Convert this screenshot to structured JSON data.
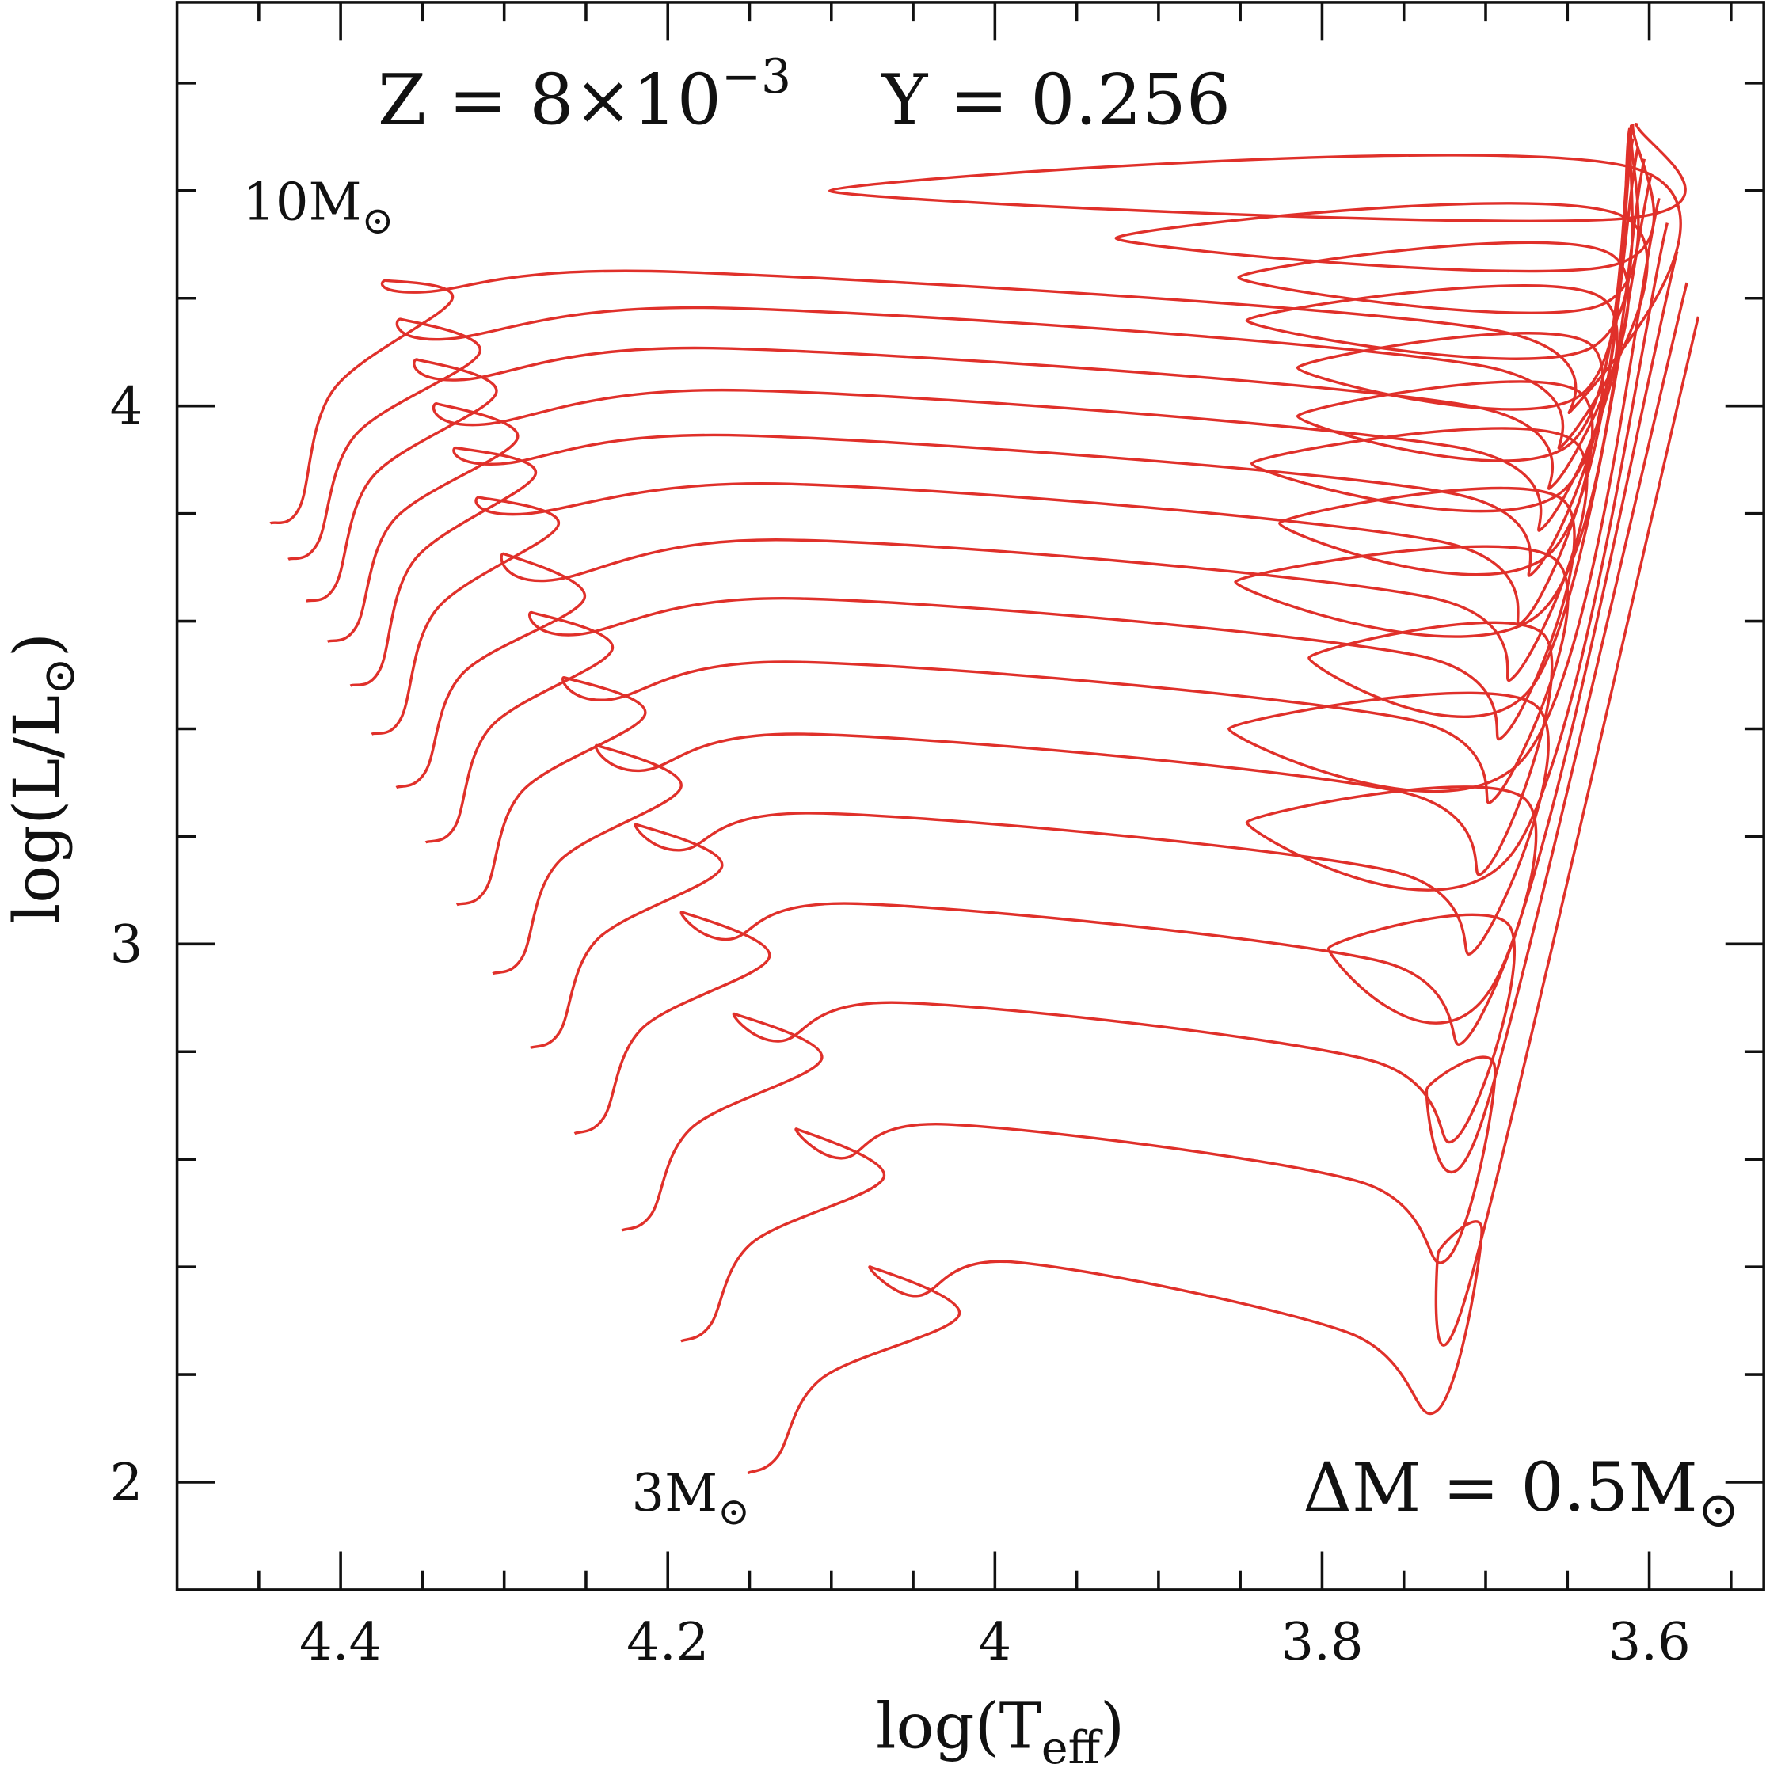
{
  "chart_data": {
    "type": "line",
    "title_parts": {
      "z_label": "Z = 8×10",
      "z_exp": "−3",
      "y_label": "Y = 0.256"
    },
    "xlabel": {
      "main": "log(T",
      "sub": "eff",
      "close": ")"
    },
    "ylabel": {
      "main": "log(L/L",
      "sub": "⊙",
      "close": ")"
    },
    "xlim": [
      4.5,
      3.53
    ],
    "ylim": [
      1.8,
      4.75
    ],
    "x_reversed": true,
    "x_ticks": [
      4.4,
      4.2,
      4.0,
      3.8,
      3.6
    ],
    "x_tick_labels": [
      "4.4",
      "4.2",
      "4",
      "3.8",
      "3.6"
    ],
    "x_minor_step": 0.05,
    "y_ticks": [
      2,
      3,
      4
    ],
    "y_tick_labels": [
      "2",
      "3",
      "4"
    ],
    "y_minor_step": 0.2,
    "grid": false,
    "color": "#e0302a",
    "annotations": {
      "top_mass": {
        "text": "10M",
        "sub": "⊙"
      },
      "bottom_mass": {
        "text": "3M",
        "sub": "⊙"
      },
      "delta_m": {
        "text": "ΔM = 0.5M",
        "sub": "⊙"
      }
    },
    "series": [
      {
        "mass": 3.0,
        "zams": [
          4.151,
          2.017
        ],
        "tams": [
          4.022,
          2.31
        ],
        "hook": [
          4.076,
          2.4
        ],
        "gap_top": [
          3.988,
          2.409
        ],
        "rgb_base": [
          3.73,
          2.132
        ],
        "loop_tip": [
          3.729,
          2.426
        ],
        "agb_tip": [
          3.57,
          4.166
        ]
      },
      {
        "mass": 3.5,
        "zams": [
          4.192,
          2.262
        ],
        "tams": [
          4.068,
          2.566
        ],
        "hook": [
          4.121,
          2.656
        ],
        "gap_top": [
          4.029,
          2.665
        ],
        "rgb_base": [
          3.724,
          2.413
        ],
        "loop_tip": [
          3.736,
          2.73
        ],
        "agb_tip": [
          3.577,
          4.229
        ]
      },
      {
        "mass": 4.0,
        "zams": [
          4.228,
          2.468
        ],
        "tams": [
          4.106,
          2.786
        ],
        "hook": [
          4.159,
          2.87
        ],
        "gap_top": [
          4.057,
          2.891
        ],
        "rgb_base": [
          3.718,
          2.639
        ],
        "loop_tip": [
          3.796,
          2.992
        ],
        "agb_tip": [
          3.583,
          4.287
        ]
      },
      {
        "mass": 4.5,
        "zams": [
          4.257,
          2.648
        ],
        "tams": [
          4.138,
          2.975
        ],
        "hook": [
          4.191,
          3.059
        ],
        "gap_top": [
          4.084,
          3.075
        ],
        "rgb_base": [
          3.712,
          2.823
        ],
        "loop_tip": [
          3.846,
          3.226
        ],
        "agb_tip": [
          3.589,
          4.34
        ]
      },
      {
        "mass": 5.0,
        "zams": [
          4.284,
          2.807
        ],
        "tams": [
          4.167,
          3.143
        ],
        "hook": [
          4.219,
          3.222
        ],
        "gap_top": [
          4.105,
          3.243
        ],
        "rgb_base": [
          3.706,
          2.991
        ],
        "loop_tip": [
          3.857,
          3.4
        ],
        "agb_tip": [
          3.594,
          4.386
        ]
      },
      {
        "mass": 5.5,
        "zams": [
          4.307,
          2.945
        ],
        "tams": [
          4.192,
          3.291
        ],
        "hook": [
          4.243,
          3.369
        ],
        "gap_top": [
          4.112,
          3.39
        ],
        "rgb_base": [
          3.7,
          3.138
        ],
        "loop_tip": [
          3.808,
          3.532
        ],
        "agb_tip": [
          3.599,
          4.428
        ]
      },
      {
        "mass": 6.0,
        "zams": [
          4.329,
          3.073
        ],
        "tams": [
          4.214,
          3.426
        ],
        "hook": [
          4.263,
          3.495
        ],
        "gap_top": [
          4.119,
          3.524
        ],
        "rgb_base": [
          3.694,
          3.272
        ],
        "loop_tip": [
          3.853,
          3.673
        ],
        "agb_tip": [
          3.603,
          4.459
        ]
      },
      {
        "mass": 6.5,
        "zams": [
          4.348,
          3.189
        ],
        "tams": [
          4.234,
          3.547
        ],
        "hook": [
          4.283,
          3.616
        ],
        "gap_top": [
          4.119,
          3.642
        ],
        "rgb_base": [
          3.688,
          3.39
        ],
        "loop_tip": [
          3.826,
          3.782
        ],
        "agb_tip": [
          3.607,
          4.48
        ]
      },
      {
        "mass": 7.0,
        "zams": [
          4.366,
          3.291
        ],
        "tams": [
          4.251,
          3.642
        ],
        "hook": [
          4.3,
          3.725
        ],
        "gap_top": [
          4.126,
          3.751
        ],
        "rgb_base": [
          3.682,
          3.499
        ],
        "loop_tip": [
          3.843,
          3.893
        ],
        "agb_tip": [
          3.61,
          4.497
        ]
      },
      {
        "mass": 7.5,
        "zams": [
          4.381,
          3.39
        ],
        "tams": [
          4.267,
          3.778
        ],
        "hook": [
          4.315,
          3.83
        ],
        "gap_top": [
          4.126,
          3.855
        ],
        "rgb_base": [
          3.676,
          3.603
        ],
        "loop_tip": [
          3.815,
          3.981
        ],
        "agb_tip": [
          3.611,
          4.507
        ]
      },
      {
        "mass": 8.0,
        "zams": [
          4.394,
          3.48
        ],
        "tams": [
          4.281,
          3.872
        ],
        "hook": [
          4.329,
          3.922
        ],
        "gap_top": [
          4.153,
          3.945
        ],
        "rgb_base": [
          3.67,
          3.693
        ],
        "loop_tip": [
          3.815,
          4.071
        ],
        "agb_tip": [
          3.612,
          4.516
        ]
      },
      {
        "mass": 8.5,
        "zams": [
          4.408,
          3.562
        ],
        "tams": [
          4.292,
          3.939
        ],
        "hook": [
          4.341,
          4.004
        ],
        "gap_top": [
          4.153,
          4.029
        ],
        "rgb_base": [
          3.664,
          3.777
        ],
        "loop_tip": [
          3.846,
          4.159
        ],
        "agb_tip": [
          3.611,
          4.52
        ]
      },
      {
        "mass": 9.0,
        "zams": [
          4.421,
          3.637
        ],
        "tams": [
          4.305,
          4.023
        ],
        "hook": [
          4.353,
          4.086
        ],
        "gap_top": [
          4.167,
          4.107
        ],
        "rgb_base": [
          3.658,
          3.855
        ],
        "loop_tip": [
          3.851,
          4.239
        ],
        "agb_tip": [
          3.611,
          4.522
        ]
      },
      {
        "mass": 9.5,
        "zams": [
          4.432,
          3.715
        ],
        "tams": [
          4.315,
          4.099
        ],
        "hook": [
          4.363,
          4.161
        ],
        "gap_top": [
          4.167,
          4.182
        ],
        "rgb_base": [
          3.652,
          3.93
        ],
        "loop_tip": [
          3.926,
          4.312
        ],
        "agb_tip": [
          3.61,
          4.524
        ]
      },
      {
        "mass": 10.0,
        "zams": [
          4.443,
          3.782
        ],
        "tams": [
          4.332,
          4.197
        ],
        "hook": [
          4.372,
          4.233
        ],
        "gap_top": [
          4.194,
          4.249
        ],
        "rgb_base": [
          3.646,
          3.997
        ],
        "loop_tip": [
          4.101,
          4.4
        ],
        "agb_tip": [
          3.608,
          4.526
        ]
      }
    ]
  }
}
